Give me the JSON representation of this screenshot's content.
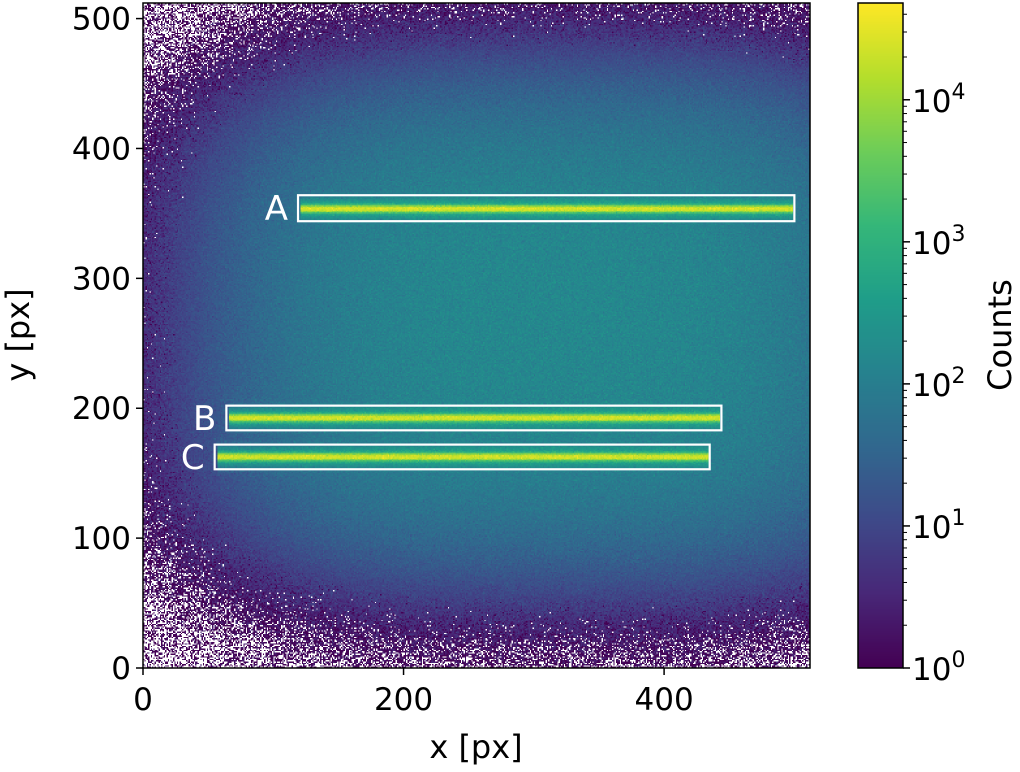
{
  "chart_data": {
    "type": "heatmap",
    "xlabel": "x [px]",
    "ylabel": "y [px]",
    "xlim": [
      0,
      512
    ],
    "ylim": [
      0,
      512
    ],
    "xticks": [
      0,
      200,
      400
    ],
    "yticks": [
      0,
      100,
      200,
      300,
      400,
      500
    ],
    "colorbar": {
      "label": "Counts",
      "scale": "log",
      "range": [
        1,
        48000
      ],
      "ticks": [
        {
          "base": "10",
          "exp": "0",
          "value": 1
        },
        {
          "base": "10",
          "exp": "1",
          "value": 10
        },
        {
          "base": "10",
          "exp": "2",
          "value": 100
        },
        {
          "base": "10",
          "exp": "3",
          "value": 1000
        },
        {
          "base": "10",
          "exp": "4",
          "value": 10000
        }
      ],
      "colormap": "viridis"
    },
    "regions": [
      {
        "label": "A",
        "x": [
          119,
          500
        ],
        "y": [
          344,
          364
        ],
        "trace_y": 353
      },
      {
        "label": "B",
        "x": [
          64,
          444
        ],
        "y": [
          183,
          202
        ],
        "trace_y": 192
      },
      {
        "label": "C",
        "x": [
          55,
          435
        ],
        "y": [
          153,
          172
        ],
        "trace_y": 162
      }
    ],
    "background_level": 150,
    "zero_color": "#ffffff",
    "box_color": "#ffffff"
  }
}
